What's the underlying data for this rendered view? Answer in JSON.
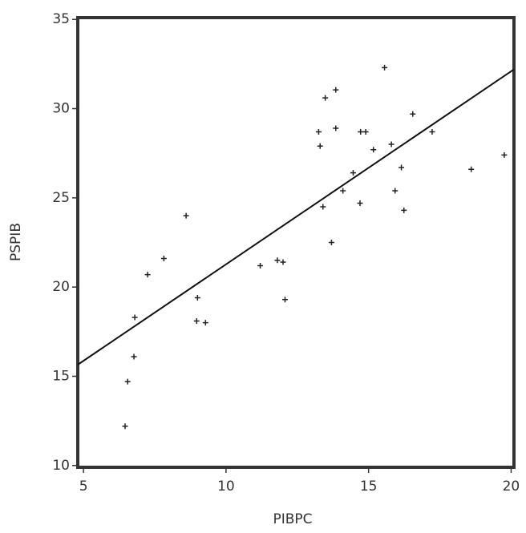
{
  "chart_data": {
    "type": "scatter",
    "x_label": "PIBPC",
    "y_label": "PSPIB",
    "xlim": [
      4.8,
      20.1
    ],
    "ylim": [
      9.9,
      35.1
    ],
    "xticks": [
      5,
      10,
      15,
      20
    ],
    "yticks": [
      10,
      15,
      20,
      25,
      30,
      35
    ],
    "color": "#222222",
    "x": [
      6.46,
      6.55,
      6.77,
      6.8,
      7.25,
      7.82,
      8.6,
      9.0,
      8.97,
      9.28,
      11.2,
      11.8,
      12.0,
      12.07,
      13.25,
      13.3,
      13.48,
      13.4,
      13.7,
      13.85,
      13.85,
      14.1,
      14.46,
      14.7,
      14.72,
      14.9,
      15.17,
      15.56,
      15.8,
      15.93,
      16.15,
      16.24,
      16.55,
      17.23,
      18.6,
      19.76
    ],
    "y": [
      12.2,
      14.7,
      16.1,
      18.3,
      20.7,
      21.6,
      24.0,
      19.4,
      18.1,
      18.0,
      21.2,
      21.5,
      21.4,
      19.3,
      28.7,
      27.9,
      30.6,
      24.5,
      22.5,
      31.05,
      28.9,
      25.4,
      26.4,
      24.7,
      28.7,
      28.7,
      27.7,
      32.3,
      28.0,
      25.4,
      26.7,
      24.3,
      29.7,
      28.7,
      26.6,
      27.4
    ],
    "trend_line": {
      "x": [
        4.8,
        20.1
      ],
      "y": [
        15.65,
        32.2
      ]
    }
  }
}
